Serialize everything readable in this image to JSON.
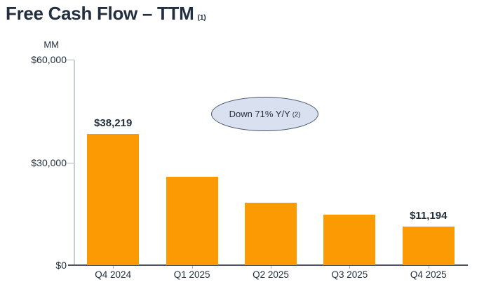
{
  "chart_data": {
    "type": "bar",
    "title": "Free Cash Flow – TTM",
    "title_footnote": "(1)",
    "unit_label": "MM",
    "xlabel": "",
    "ylabel": "",
    "categories": [
      "Q4 2024",
      "Q1 2025",
      "Q2 2025",
      "Q3 2025",
      "Q4 2025"
    ],
    "values": [
      38219,
      25900,
      18200,
      14800,
      11194
    ],
    "data_labels": [
      "$38,219",
      null,
      null,
      null,
      "$11,194"
    ],
    "y_ticks": [
      {
        "value": 60000,
        "label": "$60,000"
      },
      {
        "value": 30000,
        "label": "$30,000"
      },
      {
        "value": 0,
        "label": "$0"
      }
    ],
    "ylim": [
      0,
      60000
    ],
    "grid": false,
    "legend": "none",
    "bar_color": "#FB9A03",
    "annotation": {
      "text": "Down 71% Y/Y",
      "footnote": "(2)",
      "fill": "#D9E1F0",
      "border": "#44546A"
    },
    "colors": {
      "ink": "#232F3E",
      "y_axis": "#C8CDD5",
      "x_axis": "#4A5463",
      "tick": "#ABB1B9"
    }
  }
}
